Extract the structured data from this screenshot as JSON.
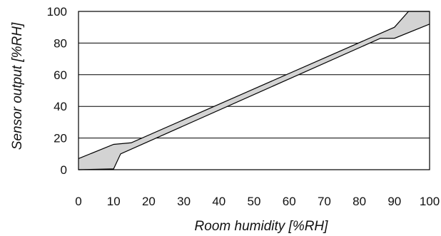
{
  "chart_data": {
    "type": "area",
    "title": "",
    "xlabel": "Room humidity [%RH]",
    "ylabel": "Sensor output [%RH]",
    "xlim": [
      0,
      100
    ],
    "ylim": [
      0,
      100
    ],
    "x_ticks": [
      0,
      10,
      20,
      30,
      40,
      50,
      60,
      70,
      80,
      90,
      100
    ],
    "y_ticks": [
      0,
      20,
      40,
      60,
      80,
      100
    ],
    "grid": "horizontal",
    "legend": "none",
    "band_fill_color": "#d3d3d3",
    "line_color": "#000000",
    "series": [
      {
        "x": [
          0,
          10,
          15,
          90,
          94,
          100
        ],
        "values": [
          7,
          16,
          17,
          90,
          100,
          100
        ]
      },
      {
        "x": [
          0,
          10,
          12,
          86,
          90,
          100
        ],
        "values": [
          0,
          0.5,
          10,
          83,
          83,
          92
        ]
      }
    ]
  }
}
